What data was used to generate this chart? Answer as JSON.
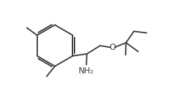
{
  "bg_color": "#ffffff",
  "line_color": "#3d3d3d",
  "line_width": 1.4,
  "font_size": 8.5,
  "nh2_label": "NH₂",
  "o_label": "O",
  "fig_width": 2.84,
  "fig_height": 1.43,
  "dpi": 100,
  "xlim": [
    0,
    10
  ],
  "ylim": [
    0,
    5
  ]
}
